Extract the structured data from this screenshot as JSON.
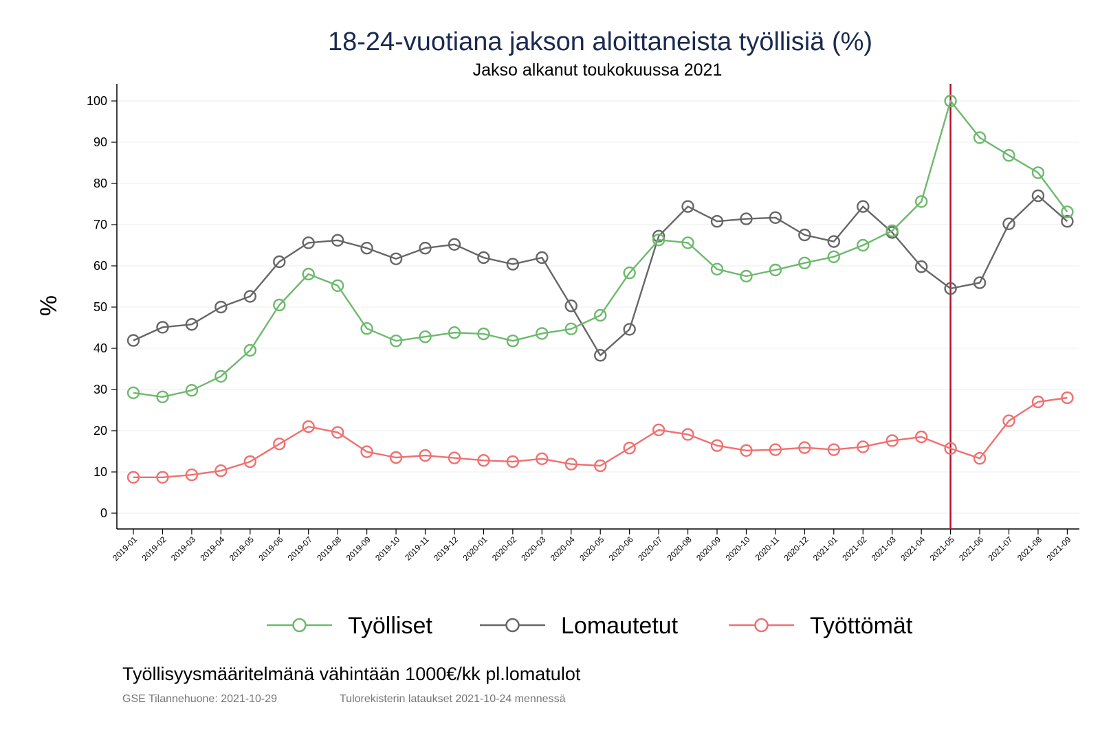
{
  "chart_data": {
    "type": "line",
    "title": "18-24-vuotiana jakson aloittaneista työllisiä (%)",
    "subtitle": "Jakso alkanut toukokuussa 2021",
    "ylabel": "%",
    "xlabel": "",
    "ylim": [
      0,
      100
    ],
    "yticks": [
      0,
      10,
      20,
      30,
      40,
      50,
      60,
      70,
      80,
      90,
      100
    ],
    "grid": true,
    "legend_position": "bottom",
    "reference_line": {
      "x": "2021-05",
      "color": "#b0102a"
    },
    "categories": [
      "2019-01",
      "2019-02",
      "2019-03",
      "2019-04",
      "2019-05",
      "2019-06",
      "2019-07",
      "2019-08",
      "2019-09",
      "2019-10",
      "2019-11",
      "2019-12",
      "2020-01",
      "2020-02",
      "2020-03",
      "2020-04",
      "2020-05",
      "2020-06",
      "2020-07",
      "2020-08",
      "2020-09",
      "2020-10",
      "2020-11",
      "2020-12",
      "2021-01",
      "2021-02",
      "2021-03",
      "2021-04",
      "2021-05",
      "2021-06",
      "2021-07",
      "2021-08",
      "2021-09"
    ],
    "series": [
      {
        "name": "Työlliset",
        "color": "#6db96d",
        "values": [
          29.2,
          28.2,
          29.8,
          33.2,
          39.5,
          50.5,
          58.0,
          55.2,
          44.8,
          41.8,
          42.8,
          43.8,
          43.5,
          41.8,
          43.6,
          44.7,
          48.0,
          58.3,
          66.3,
          65.6,
          59.2,
          57.5,
          59.0,
          60.7,
          62.2,
          65.0,
          68.5,
          75.6,
          100.0,
          91.1,
          86.8,
          82.6,
          73.1
        ]
      },
      {
        "name": "Lomautetut",
        "color": "#666666",
        "values": [
          41.9,
          45.1,
          45.8,
          50.0,
          52.6,
          61.0,
          65.6,
          66.2,
          64.3,
          61.7,
          64.3,
          65.2,
          62.0,
          60.4,
          62.0,
          50.3,
          38.3,
          44.6,
          67.2,
          74.4,
          70.8,
          71.4,
          71.7,
          67.5,
          65.9,
          74.4,
          68.1,
          59.8,
          54.5,
          55.9,
          70.2,
          77.0,
          70.8
        ]
      },
      {
        "name": "Työttömät",
        "color": "#f07070",
        "values": [
          8.7,
          8.7,
          9.3,
          10.3,
          12.5,
          16.8,
          21.0,
          19.6,
          14.9,
          13.5,
          14.0,
          13.4,
          12.8,
          12.5,
          13.2,
          11.9,
          11.5,
          15.8,
          20.2,
          19.1,
          16.4,
          15.2,
          15.4,
          15.9,
          15.4,
          16.1,
          17.6,
          18.5,
          15.7,
          13.3,
          22.4,
          27.0,
          28.0
        ]
      }
    ]
  },
  "footer": {
    "note": "Työllisyysmääritelmänä vähintään 1000€/kk pl.lomatulot",
    "source_left": "GSE Tilannehuone: 2021-10-29",
    "source_right": "Tulorekisterin lataukset 2021-10-24 mennessä"
  }
}
